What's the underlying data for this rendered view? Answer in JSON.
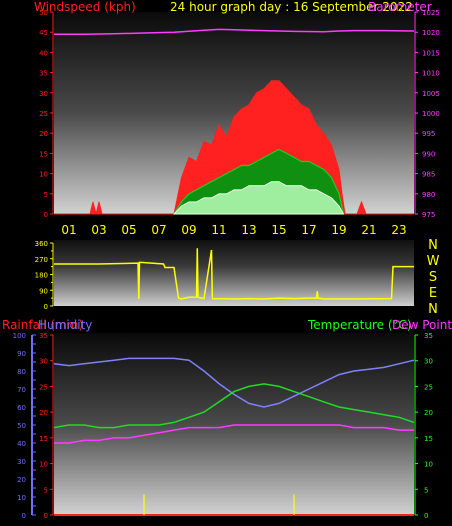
{
  "header": {
    "title": "24 hour graph day : 16 September 2022",
    "left_label": "Windspeed (kph)",
    "right_label": "Barometer"
  },
  "colors": {
    "background": "#000000",
    "windspeed_axis": "#ff2020",
    "pressure_axis": "#ff3cff",
    "title": "#ffff00",
    "direction": "#ffff00",
    "rain_axis": "#ff2020",
    "humidity_axis": "#7070ff",
    "temperature_axis": "#20ff20",
    "dewpoint_axis": "#ff3cff",
    "hour_labels": "#ffff00"
  },
  "hours": [
    "01",
    "03",
    "05",
    "07",
    "09",
    "11",
    "13",
    "15",
    "17",
    "19",
    "21",
    "23"
  ],
  "direction_letters": [
    "N",
    "W",
    "S",
    "E",
    "N"
  ],
  "lower_labels": {
    "rainfall": "Rainfall (mm)",
    "humidity": "Humidity",
    "temperature": "Temperature (°C)",
    "dewpoint": "Dew Point"
  },
  "chart_data": [
    {
      "type": "area",
      "title": "24 hour graph day : 16 September 2022",
      "x_unit": "hour",
      "xlim": [
        0,
        24
      ],
      "y_left": {
        "label": "Windspeed (kph)",
        "range": [
          0,
          50
        ],
        "ticks": [
          0,
          5,
          10,
          15,
          20,
          25,
          30,
          35,
          40,
          45,
          50
        ]
      },
      "y_right": {
        "label": "Barometer",
        "range": [
          975,
          1025
        ],
        "ticks": [
          975,
          980,
          985,
          990,
          995,
          1000,
          1005,
          1010,
          1015,
          1020,
          1025
        ]
      },
      "grid": false,
      "series": [
        {
          "name": "Barometer",
          "axis": "right",
          "color": "#ff3cff",
          "x": [
            0,
            2,
            4,
            6,
            8,
            10,
            11,
            12,
            14,
            16,
            18,
            19,
            20,
            22,
            24
          ],
          "y": [
            1019.5,
            1019.5,
            1019.6,
            1019.8,
            1020.0,
            1020.5,
            1020.7,
            1020.6,
            1020.4,
            1020.2,
            1020.1,
            1020.3,
            1020.4,
            1020.4,
            1020.3
          ]
        },
        {
          "name": "Gust",
          "axis": "left",
          "color": "#ff2020",
          "x": [
            0,
            2.4,
            2.6,
            2.8,
            3.0,
            3.2,
            8.0,
            8.5,
            9,
            9.5,
            10,
            10.5,
            11,
            11.5,
            12,
            12.5,
            13,
            13.5,
            14,
            14.5,
            15,
            15.5,
            16,
            16.5,
            17,
            17.5,
            18,
            18.5,
            19,
            19.2,
            19.4,
            20.2,
            20.5,
            20.8,
            24
          ],
          "y": [
            0,
            0,
            3,
            0,
            3,
            0,
            0,
            9,
            14,
            13,
            18,
            17,
            22,
            19,
            24,
            26,
            27,
            30,
            31,
            33,
            33,
            31,
            29,
            27,
            26,
            22,
            20,
            17,
            11,
            5,
            0,
            0,
            3,
            0,
            0
          ]
        },
        {
          "name": "Windspeed",
          "axis": "left",
          "color": "#20cc20",
          "x": [
            8,
            8.5,
            9,
            9.5,
            10,
            10.5,
            11,
            11.5,
            12,
            12.5,
            13,
            13.5,
            14,
            14.5,
            15,
            15.5,
            16,
            16.5,
            17,
            17.5,
            18,
            18.5,
            19,
            19.3
          ],
          "y": [
            0,
            3,
            5,
            6,
            7,
            8,
            9,
            10,
            11,
            12,
            12,
            13,
            14,
            15,
            16,
            15,
            14,
            13,
            13,
            12,
            11,
            9,
            5,
            0
          ]
        },
        {
          "name": "Average",
          "axis": "left",
          "color": "#b8ffb8",
          "x": [
            8,
            8.5,
            9,
            9.5,
            10,
            10.5,
            11,
            11.5,
            12,
            12.5,
            13,
            13.5,
            14,
            14.5,
            15,
            15.5,
            16,
            16.5,
            17,
            17.5,
            18,
            18.5,
            19,
            19.3
          ],
          "y": [
            0,
            2,
            3,
            3,
            4,
            4,
            5,
            5,
            6,
            6,
            7,
            7,
            7,
            8,
            8,
            7,
            7,
            7,
            6,
            6,
            5,
            4,
            2,
            0
          ]
        }
      ]
    },
    {
      "type": "line",
      "title": "",
      "x_unit": "hour",
      "xlim": [
        0,
        24
      ],
      "y": {
        "label": "",
        "range": [
          0,
          360
        ],
        "ticks": [
          0,
          45,
          90,
          135,
          180,
          225,
          270,
          315,
          360
        ]
      },
      "series": [
        {
          "name": "Wind direction",
          "color": "#ffff00",
          "x": [
            0,
            3,
            5.6,
            5.65,
            5.7,
            7.3,
            7.4,
            7.8,
            8.0,
            8.3,
            8.5,
            9.0,
            9.5,
            9.55,
            9.6,
            10.0,
            10.5,
            10.55,
            10.6,
            11,
            12,
            13,
            14,
            15,
            16,
            17,
            17.5,
            17.55,
            17.6,
            18,
            19,
            20,
            22.5,
            22.6,
            24
          ],
          "y": [
            240,
            240,
            245,
            40,
            250,
            240,
            220,
            220,
            220,
            45,
            40,
            50,
            50,
            330,
            50,
            42,
            320,
            45,
            40,
            42,
            40,
            42,
            40,
            45,
            42,
            45,
            45,
            85,
            45,
            40,
            40,
            40,
            42,
            225,
            225
          ]
        }
      ]
    },
    {
      "type": "line",
      "title": "",
      "x_unit": "hour",
      "xlim": [
        0,
        24
      ],
      "y_left_outer": {
        "label": "Humidity",
        "range": [
          0,
          100
        ],
        "ticks": [
          0,
          5,
          10,
          15,
          20,
          25,
          30,
          35,
          40,
          45,
          50,
          55,
          60,
          65,
          70,
          75,
          80,
          85,
          90,
          95,
          100
        ]
      },
      "y_left_inner": {
        "label": "Rainfall (mm)",
        "range": [
          0,
          35
        ],
        "ticks": [
          0,
          5,
          10,
          15,
          20,
          25,
          30,
          35
        ]
      },
      "y_right": {
        "label": "Temperature (°C) / Dew Point",
        "range": [
          0,
          35
        ],
        "ticks": [
          0,
          5,
          10,
          15,
          20,
          25,
          30,
          35
        ]
      },
      "series": [
        {
          "name": "Humidity",
          "axis": "left_outer",
          "color": "#8080ff",
          "x": [
            0,
            1,
            2,
            3,
            4,
            5,
            6,
            7,
            8,
            9,
            10,
            11,
            12,
            13,
            14,
            15,
            16,
            17,
            18,
            19,
            20,
            21,
            22,
            23,
            24
          ],
          "y": [
            84,
            83,
            84,
            85,
            86,
            87,
            87,
            87,
            87,
            86,
            80,
            73,
            67,
            62,
            60,
            62,
            66,
            70,
            74,
            78,
            80,
            81,
            82,
            84,
            86
          ]
        },
        {
          "name": "Temperature",
          "axis": "right",
          "color": "#20dd20",
          "x": [
            0,
            1,
            2,
            3,
            4,
            5,
            6,
            7,
            8,
            9,
            10,
            11,
            12,
            13,
            14,
            15,
            16,
            17,
            18,
            19,
            20,
            21,
            22,
            23,
            24
          ],
          "y": [
            17,
            17.5,
            17.5,
            17,
            17,
            17.5,
            17.5,
            17.5,
            18,
            19,
            20,
            22,
            24,
            25,
            25.5,
            25,
            24,
            23,
            22,
            21,
            20.5,
            20,
            19.5,
            19,
            18
          ]
        },
        {
          "name": "Dew Point",
          "axis": "right",
          "color": "#ff3cff",
          "x": [
            0,
            1,
            2,
            3,
            4,
            5,
            6,
            7,
            8,
            9,
            10,
            11,
            12,
            13,
            14,
            15,
            16,
            17,
            18,
            19,
            20,
            21,
            22,
            23,
            24
          ],
          "y": [
            14,
            14,
            14.5,
            14.5,
            15,
            15,
            15.5,
            16,
            16.5,
            17,
            17,
            17,
            17.5,
            17.5,
            17.5,
            17.5,
            17.5,
            17.5,
            17.5,
            17.5,
            17,
            17,
            17,
            16.5,
            16.5
          ]
        },
        {
          "name": "Rainfall",
          "axis": "left_inner",
          "color": "#ff2020",
          "x": [
            0,
            24
          ],
          "y": [
            0,
            0
          ]
        }
      ],
      "markers": {
        "color": "#ffff00",
        "x": [
          6,
          16
        ],
        "height": 4
      }
    }
  ]
}
